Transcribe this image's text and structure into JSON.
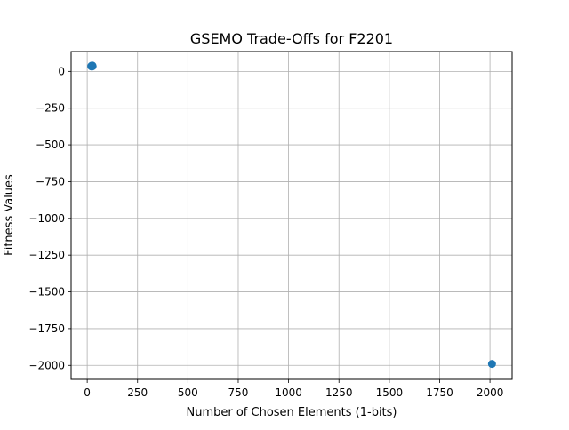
{
  "chart_data": {
    "type": "scatter",
    "title": "GSEMO Trade-Offs for F2201",
    "xlabel": "Number of Chosen Elements (1-bits)",
    "ylabel": "Fitness Values",
    "xlim": [
      -80,
      2110
    ],
    "ylim": [
      -2095,
      135
    ],
    "xticks": [
      0,
      250,
      500,
      750,
      1000,
      1250,
      1500,
      1750,
      2000
    ],
    "yticks": [
      0,
      -250,
      -500,
      -750,
      -1000,
      -1250,
      -1500,
      -1750,
      -2000
    ],
    "grid": true,
    "series": [
      {
        "color": "#1f77b4",
        "points": [
          {
            "x": 20,
            "y": 35
          },
          {
            "x": 22,
            "y": 38
          },
          {
            "x": 25,
            "y": 40
          },
          {
            "x": 27,
            "y": 36
          },
          {
            "x": 23,
            "y": 33
          },
          {
            "x": 2010,
            "y": -1990
          }
        ]
      }
    ]
  }
}
